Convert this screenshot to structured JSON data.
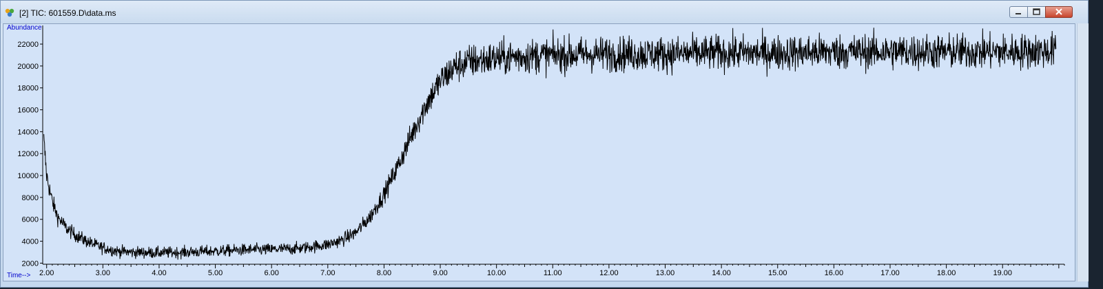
{
  "window": {
    "title": "[2] TIC: 601559.D\\data.ms",
    "icon": "chromatogram-app-icon",
    "controls": [
      "minimize-icon",
      "maximize-icon",
      "close-icon"
    ]
  },
  "colors": {
    "plot_background": "#d3e3f8",
    "trace": "#000000",
    "axis_title": "#0000cc"
  },
  "chart_data": {
    "type": "line",
    "ylabel": "Abundance",
    "xlabel": "Time-->",
    "xlim": [
      1.93,
      20.1
    ],
    "ylim": [
      1900,
      23700
    ],
    "x_ticks": [
      2,
      3,
      4,
      5,
      6,
      7,
      8,
      9,
      10,
      11,
      12,
      13,
      14,
      15,
      16,
      17,
      18,
      19
    ],
    "x_tick_labels": [
      "2.00",
      "3.00",
      "4.00",
      "5.00",
      "6.00",
      "7.00",
      "8.00",
      "9.00",
      "10.00",
      "11.00",
      "12.00",
      "13.00",
      "14.00",
      "15.00",
      "16.00",
      "17.00",
      "18.00",
      "19.00"
    ],
    "y_ticks": [
      2000,
      4000,
      6000,
      8000,
      10000,
      12000,
      14000,
      16000,
      18000,
      20000,
      22000
    ],
    "y_tick_labels": [
      "2000",
      "4000",
      "6000",
      "8000",
      "10000",
      "12000",
      "14000",
      "16000",
      "18000",
      "20000",
      "22000"
    ],
    "grid": false,
    "series": [
      {
        "x": [
          1.95,
          2.0,
          2.1,
          2.2,
          2.35,
          2.5,
          2.75,
          3.0,
          3.25,
          3.5,
          4.0,
          4.5,
          5.0,
          5.5,
          6.0,
          6.5,
          7.0,
          7.25,
          7.5,
          7.75,
          8.0,
          8.25,
          8.5,
          8.75,
          9.0,
          9.25,
          9.5,
          10.0,
          10.5,
          11.0,
          12.0,
          13.0,
          14.0,
          15.0,
          16.0,
          17.0,
          18.0,
          19.0,
          19.95
        ],
        "y": [
          13200,
          10000,
          7600,
          6200,
          5200,
          4600,
          3900,
          3400,
          3100,
          3000,
          2950,
          3000,
          3100,
          3200,
          3250,
          3350,
          3700,
          4100,
          4800,
          6200,
          8300,
          10900,
          13800,
          16500,
          18600,
          19900,
          20400,
          20700,
          20900,
          21000,
          21100,
          21100,
          21200,
          21200,
          21300,
          21300,
          21300,
          21300,
          21400
        ]
      }
    ]
  }
}
